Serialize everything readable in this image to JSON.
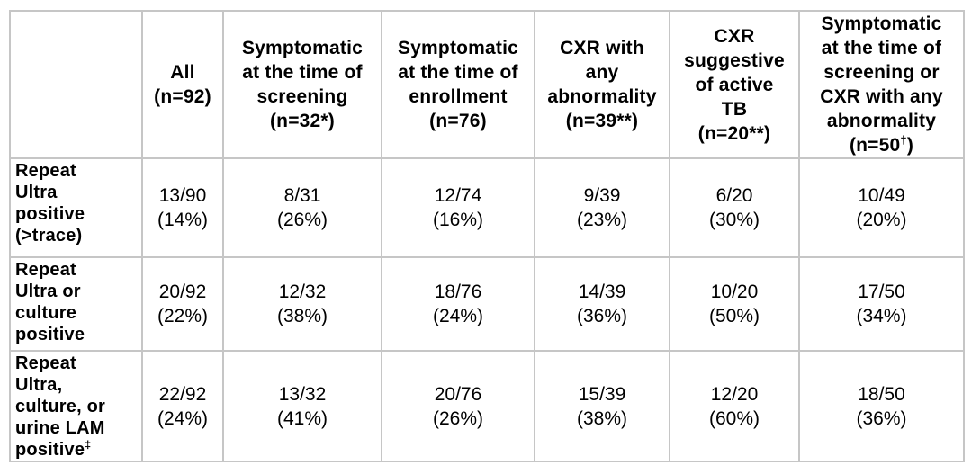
{
  "colors": {
    "border": "#c6c6c6",
    "text": "#000000",
    "background": "#ffffff"
  },
  "table": {
    "corner_label": "",
    "columns": [
      {
        "lines": [
          "All"
        ],
        "n_base": "(n=92)",
        "n_sup": "",
        "n_close": ""
      },
      {
        "lines": [
          "Symptomatic",
          "at the time of",
          "screening"
        ],
        "n_base": "(n=32*)",
        "n_sup": "",
        "n_close": ""
      },
      {
        "lines": [
          "Symptomatic",
          "at the time of",
          "enrollment"
        ],
        "n_base": "(n=76)",
        "n_sup": "",
        "n_close": ""
      },
      {
        "lines": [
          "CXR with",
          "any",
          "abnormality"
        ],
        "n_base": "(n=39**)",
        "n_sup": "",
        "n_close": ""
      },
      {
        "lines": [
          "CXR",
          "suggestive",
          "of active",
          "TB"
        ],
        "n_base": "(n=20**)",
        "n_sup": "",
        "n_close": ""
      },
      {
        "lines": [
          "Symptomatic",
          "at the time of",
          "screening or",
          "CXR with any",
          "abnormality"
        ],
        "n_base": "(n=50",
        "n_sup": "†",
        "n_close": ")"
      }
    ],
    "rows": [
      {
        "label_lines": [
          "Repeat",
          "Ultra",
          "positive"
        ],
        "label_last": "(>trace)",
        "label_sup": "",
        "cells": [
          {
            "frac": "13/90",
            "pct": "(14%)"
          },
          {
            "frac": "8/31",
            "pct": "(26%)"
          },
          {
            "frac": "12/74",
            "pct": "(16%)"
          },
          {
            "frac": "9/39",
            "pct": "(23%)"
          },
          {
            "frac": "6/20",
            "pct": "(30%)"
          },
          {
            "frac": "10/49",
            "pct": "(20%)"
          }
        ]
      },
      {
        "label_lines": [
          "Repeat",
          "Ultra or",
          "culture"
        ],
        "label_last": "positive",
        "label_sup": "",
        "cells": [
          {
            "frac": "20/92",
            "pct": "(22%)"
          },
          {
            "frac": "12/32",
            "pct": "(38%)"
          },
          {
            "frac": "18/76",
            "pct": "(24%)"
          },
          {
            "frac": "14/39",
            "pct": "(36%)"
          },
          {
            "frac": "10/20",
            "pct": "(50%)"
          },
          {
            "frac": "17/50",
            "pct": "(34%)"
          }
        ]
      },
      {
        "label_lines": [
          "Repeat",
          "Ultra,",
          "culture, or",
          "urine LAM"
        ],
        "label_last": "positive",
        "label_sup": "‡",
        "cells": [
          {
            "frac": "22/92",
            "pct": "(24%)"
          },
          {
            "frac": "13/32",
            "pct": "(41%)"
          },
          {
            "frac": "20/76",
            "pct": "(26%)"
          },
          {
            "frac": "15/39",
            "pct": "(38%)"
          },
          {
            "frac": "12/20",
            "pct": "(60%)"
          },
          {
            "frac": "18/50",
            "pct": "(36%)"
          }
        ]
      }
    ]
  }
}
